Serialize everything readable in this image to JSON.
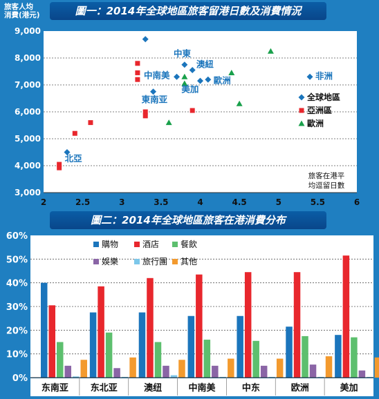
{
  "charts": [
    {
      "title": "圖一：2014年全球地區旅客留港日數及消費情況",
      "ylabel_lines": [
        "旅客人均",
        "消費(港元)"
      ],
      "xlabel_lines": [
        "旅客在港平",
        "均逗留日數"
      ],
      "chart_data": {
        "type": "scatter",
        "title": "圖一：2014年全球地區旅客留港日數及消費情況",
        "xlabel": "旅客在港平均逗留日數",
        "ylabel": "旅客人均消費(港元)",
        "xlim": [
          2,
          6
        ],
        "ylim": [
          3000,
          9000
        ],
        "x_ticks": [
          "2",
          "2.5",
          "3",
          "3.5",
          "4",
          "4.5",
          "5",
          "5.5",
          "6"
        ],
        "y_ticks": [
          "3,000",
          "4,000",
          "5,000",
          "6,000",
          "7,000",
          "8,000",
          "9,000"
        ],
        "legend_position": "right",
        "series": [
          {
            "name": "全球地區",
            "marker": "diamond",
            "color": "#1b75bc",
            "points": [
              [
                2.3,
                4500
              ],
              [
                3.3,
                8700
              ],
              [
                3.8,
                7750
              ],
              [
                3.9,
                7550
              ],
              [
                3.7,
                7300
              ],
              [
                4.0,
                7150
              ],
              [
                4.1,
                7200
              ],
              [
                3.4,
                6750
              ],
              [
                5.4,
                7300
              ]
            ]
          },
          {
            "name": "亞洲區",
            "marker": "square",
            "color": "#e8272d",
            "points": [
              [
                2.2,
                4050
              ],
              [
                2.2,
                3920
              ],
              [
                2.4,
                5200
              ],
              [
                2.6,
                5600
              ],
              [
                3.2,
                7800
              ],
              [
                3.2,
                7450
              ],
              [
                3.2,
                7200
              ],
              [
                3.3,
                6000
              ],
              [
                3.3,
                5850
              ],
              [
                3.9,
                6050
              ]
            ]
          },
          {
            "name": "歐洲",
            "marker": "triangle",
            "color": "#19a04b",
            "points": [
              [
                3.6,
                5600
              ],
              [
                3.8,
                7300
              ],
              [
                3.8,
                7050
              ],
              [
                4.4,
                7450
              ],
              [
                4.5,
                6300
              ],
              [
                4.9,
                8250
              ]
            ]
          }
        ],
        "annotations": [
          {
            "text": "北亞",
            "x": 2.27,
            "y": 4150
          },
          {
            "text": "中東",
            "x": 3.66,
            "y": 8050
          },
          {
            "text": "澳紐",
            "x": 3.95,
            "y": 7650
          },
          {
            "text": "中南美",
            "x": 3.28,
            "y": 7250
          },
          {
            "text": "歐洲",
            "x": 4.17,
            "y": 7050
          },
          {
            "text": "美加",
            "x": 3.76,
            "y": 6730
          },
          {
            "text": "東南亚",
            "x": 3.25,
            "y": 6350
          },
          {
            "text": "非洲",
            "x": 5.47,
            "y": 7220
          }
        ]
      }
    },
    {
      "title": "圖二：2014年全球地區旅客在港消費分布",
      "chart_data": {
        "type": "bar",
        "title": "圖二：2014年全球地區旅客在港消費分布",
        "categories": [
          "东南亚",
          "东北亚",
          "澳纽",
          "中南美",
          "中东",
          "欧洲",
          "美加"
        ],
        "ylim": [
          0,
          60
        ],
        "y_ticks": [
          "0%",
          "10%",
          "20%",
          "30%",
          "40%",
          "50%",
          "60%"
        ],
        "legend_position": "top",
        "series": [
          {
            "name": "購物",
            "color": "#1b75bc",
            "values": [
              40,
              27.5,
              27.5,
              26,
              26,
              21.5,
              18
            ]
          },
          {
            "name": "酒店",
            "color": "#e8272d",
            "values": [
              30.5,
              38.5,
              42,
              43.5,
              44.5,
              44.5,
              51.5
            ]
          },
          {
            "name": "餐飲",
            "color": "#5dbf6e",
            "values": [
              15,
              19,
              15,
              16,
              15.5,
              17.5,
              17
            ]
          },
          {
            "name": "娛樂",
            "color": "#8a65a6",
            "values": [
              5,
              4,
              5,
              5,
              5,
              5.5,
              3
            ]
          },
          {
            "name": "旅行團",
            "color": "#7cc7ea",
            "values": [
              0.5,
              0.3,
              1,
              0.3,
              0.3,
              0.3,
              0.3
            ]
          },
          {
            "name": "其他",
            "color": "#f39a2e",
            "values": [
              7.5,
              8.5,
              7.5,
              8,
              8,
              9,
              8.5
            ]
          }
        ]
      }
    }
  ]
}
